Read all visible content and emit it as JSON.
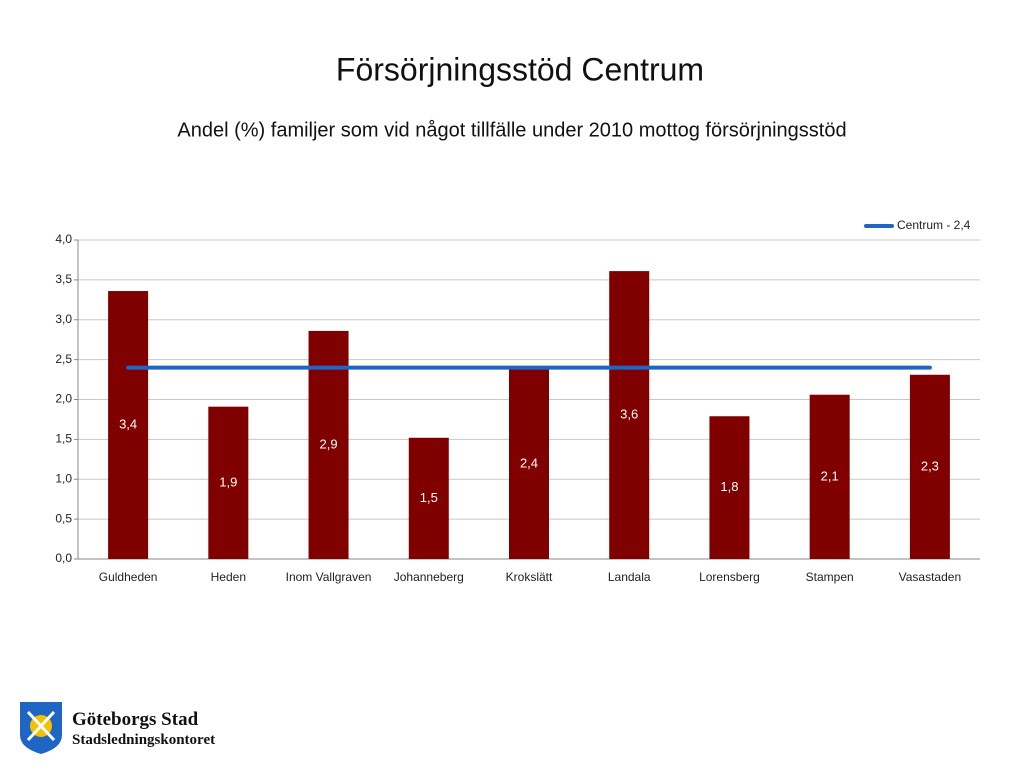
{
  "chart_data": {
    "type": "bar",
    "title": "Försörjningsstöd Centrum",
    "subtitle": "Andel (%) familjer som vid något tillfälle under 2010 mottog försörjningsstöd",
    "categories": [
      "Guldheden",
      "Heden",
      "Inom Vallgraven",
      "Johanneberg",
      "Krokslätt",
      "Landala",
      "Lorensberg",
      "Stampen",
      "Vasastaden"
    ],
    "values": [
      3.36,
      1.91,
      2.86,
      1.52,
      2.38,
      3.61,
      1.79,
      2.06,
      2.31
    ],
    "value_labels": [
      "3,4",
      "1,9",
      "2,9",
      "1,5",
      "2,4",
      "3,6",
      "1,8",
      "2,1",
      "2,3"
    ],
    "color": "#800000",
    "series": [
      {
        "name": "Centrum - 2,4",
        "type": "line",
        "color": "#1f66c4",
        "values": [
          2.4,
          2.4,
          2.4,
          2.4,
          2.4,
          2.4,
          2.4,
          2.4,
          2.4
        ]
      }
    ],
    "ylim": [
      0,
      4
    ],
    "yticks": [
      {
        "value": 0,
        "label": "0,0"
      },
      {
        "value": 0.5,
        "label": "0,5"
      },
      {
        "value": 1,
        "label": "1,0"
      },
      {
        "value": 1.5,
        "label": "1,5"
      },
      {
        "value": 2,
        "label": "2,0"
      },
      {
        "value": 2.5,
        "label": "2,5"
      },
      {
        "value": 3,
        "label": "3,0"
      },
      {
        "value": 3.5,
        "label": "3,5"
      },
      {
        "value": 4,
        "label": "4,0"
      }
    ],
    "grid": true,
    "legend": "top-right"
  },
  "logo": {
    "name": "Göteborgs Stad",
    "unit": "Stadsledningskontoret"
  }
}
